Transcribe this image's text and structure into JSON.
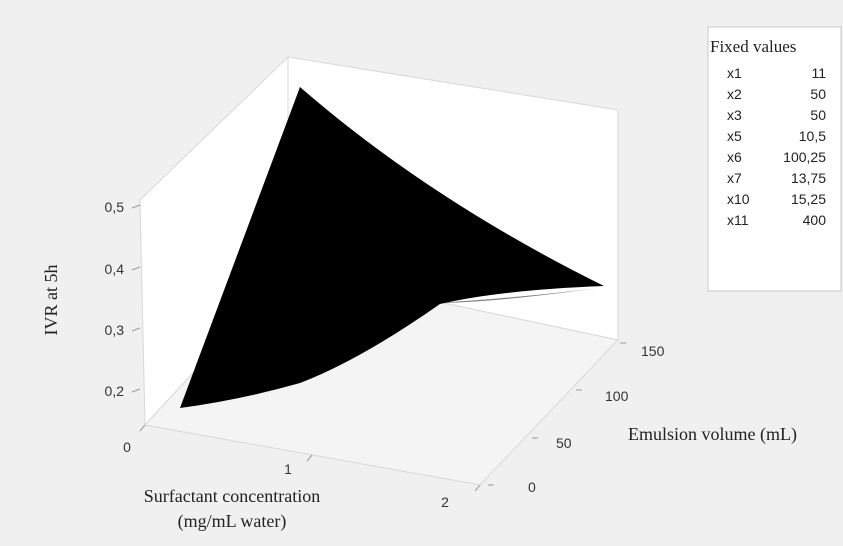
{
  "chart_data": {
    "type": "surface",
    "zlabel": "IVR at 5h",
    "xlabel_line1": "Surfactant concentration",
    "xlabel_line2": "(mg/mL water)",
    "ylabel": "Emulsion volume (mL)",
    "x_ticks": [
      "0",
      "1",
      "2"
    ],
    "y_ticks": [
      "0",
      "50",
      "100",
      "150"
    ],
    "z_ticks": [
      "0,2",
      "0,3",
      "0,4",
      "0,5"
    ],
    "x_range": [
      0,
      2
    ],
    "y_range": [
      0,
      150
    ],
    "z_range": [
      0.15,
      0.55
    ],
    "corner_values": [
      {
        "x": 0,
        "y": 0,
        "z": 0.17
      },
      {
        "x": 0,
        "y": 150,
        "z": 0.52
      },
      {
        "x": 2,
        "y": 150,
        "z": 0.4
      },
      {
        "x": 2,
        "y": 0,
        "z": 0.28
      }
    ],
    "surface_color": "#000000",
    "underside_color": "#7f7f7f"
  },
  "legend": {
    "title": "Fixed values",
    "rows": [
      {
        "name": "x1",
        "value": "11"
      },
      {
        "name": "x2",
        "value": "50"
      },
      {
        "name": "x3",
        "value": "50"
      },
      {
        "name": "x5",
        "value": "10,5"
      },
      {
        "name": "x6",
        "value": "100,25"
      },
      {
        "name": "x7",
        "value": "13,75"
      },
      {
        "name": "x10",
        "value": "15,25"
      },
      {
        "name": "x11",
        "value": "400"
      }
    ]
  }
}
